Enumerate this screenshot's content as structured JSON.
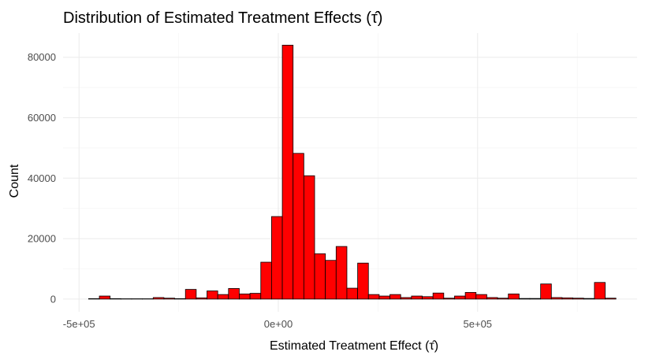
{
  "chart_data": {
    "type": "bar",
    "subtype": "histogram",
    "title": "Distribution of Estimated Treatment Effects (τ̂)",
    "xlabel": "Estimated Treatment Effect (τ̂)",
    "ylabel": "Count",
    "bar_color": "#ff0000",
    "bar_outline": "#000000",
    "xlim": [
      -540000,
      900000
    ],
    "ylim": [
      -4200,
      88000
    ],
    "x_ticks": [
      {
        "value": -500000,
        "label": "-5e+05"
      },
      {
        "value": 0,
        "label": "0e+00"
      },
      {
        "value": 500000,
        "label": "5e+05"
      }
    ],
    "y_ticks": [
      {
        "value": 0,
        "label": "0"
      },
      {
        "value": 20000,
        "label": "20000"
      },
      {
        "value": 40000,
        "label": "40000"
      },
      {
        "value": 60000,
        "label": "60000"
      },
      {
        "value": 80000,
        "label": "80000"
      }
    ],
    "grid": true,
    "bin_width": 27000,
    "bins": [
      {
        "x0": -476000,
        "count": 150
      },
      {
        "x0": -449000,
        "count": 1000
      },
      {
        "x0": -422000,
        "count": 150
      },
      {
        "x0": -395000,
        "count": 100
      },
      {
        "x0": -368000,
        "count": 100
      },
      {
        "x0": -341000,
        "count": 100
      },
      {
        "x0": -314000,
        "count": 500
      },
      {
        "x0": -287000,
        "count": 300
      },
      {
        "x0": -260000,
        "count": 150
      },
      {
        "x0": -233000,
        "count": 3200
      },
      {
        "x0": -206000,
        "count": 400
      },
      {
        "x0": -179000,
        "count": 2700
      },
      {
        "x0": -152000,
        "count": 1500
      },
      {
        "x0": -125000,
        "count": 3500
      },
      {
        "x0": -98000,
        "count": 1700
      },
      {
        "x0": -71000,
        "count": 1900
      },
      {
        "x0": -44000,
        "count": 12200
      },
      {
        "x0": -17000,
        "count": 27300
      },
      {
        "x0": 10000,
        "count": 84000
      },
      {
        "x0": 37000,
        "count": 48200
      },
      {
        "x0": 64000,
        "count": 40800
      },
      {
        "x0": 91000,
        "count": 15000
      },
      {
        "x0": 118000,
        "count": 12800
      },
      {
        "x0": 145000,
        "count": 17400
      },
      {
        "x0": 172000,
        "count": 3600
      },
      {
        "x0": 199000,
        "count": 11900
      },
      {
        "x0": 226000,
        "count": 1500
      },
      {
        "x0": 253000,
        "count": 1000
      },
      {
        "x0": 280000,
        "count": 1500
      },
      {
        "x0": 307000,
        "count": 500
      },
      {
        "x0": 334000,
        "count": 1000
      },
      {
        "x0": 361000,
        "count": 800
      },
      {
        "x0": 388000,
        "count": 2000
      },
      {
        "x0": 415000,
        "count": 300
      },
      {
        "x0": 442000,
        "count": 1000
      },
      {
        "x0": 469000,
        "count": 2200
      },
      {
        "x0": 496000,
        "count": 1500
      },
      {
        "x0": 523000,
        "count": 500
      },
      {
        "x0": 550000,
        "count": 300
      },
      {
        "x0": 577000,
        "count": 1700
      },
      {
        "x0": 604000,
        "count": 200
      },
      {
        "x0": 631000,
        "count": 200
      },
      {
        "x0": 658000,
        "count": 5000
      },
      {
        "x0": 685000,
        "count": 500
      },
      {
        "x0": 712000,
        "count": 400
      },
      {
        "x0": 739000,
        "count": 300
      },
      {
        "x0": 766000,
        "count": 200
      },
      {
        "x0": 793000,
        "count": 5500
      },
      {
        "x0": 820000,
        "count": 300
      }
    ]
  }
}
